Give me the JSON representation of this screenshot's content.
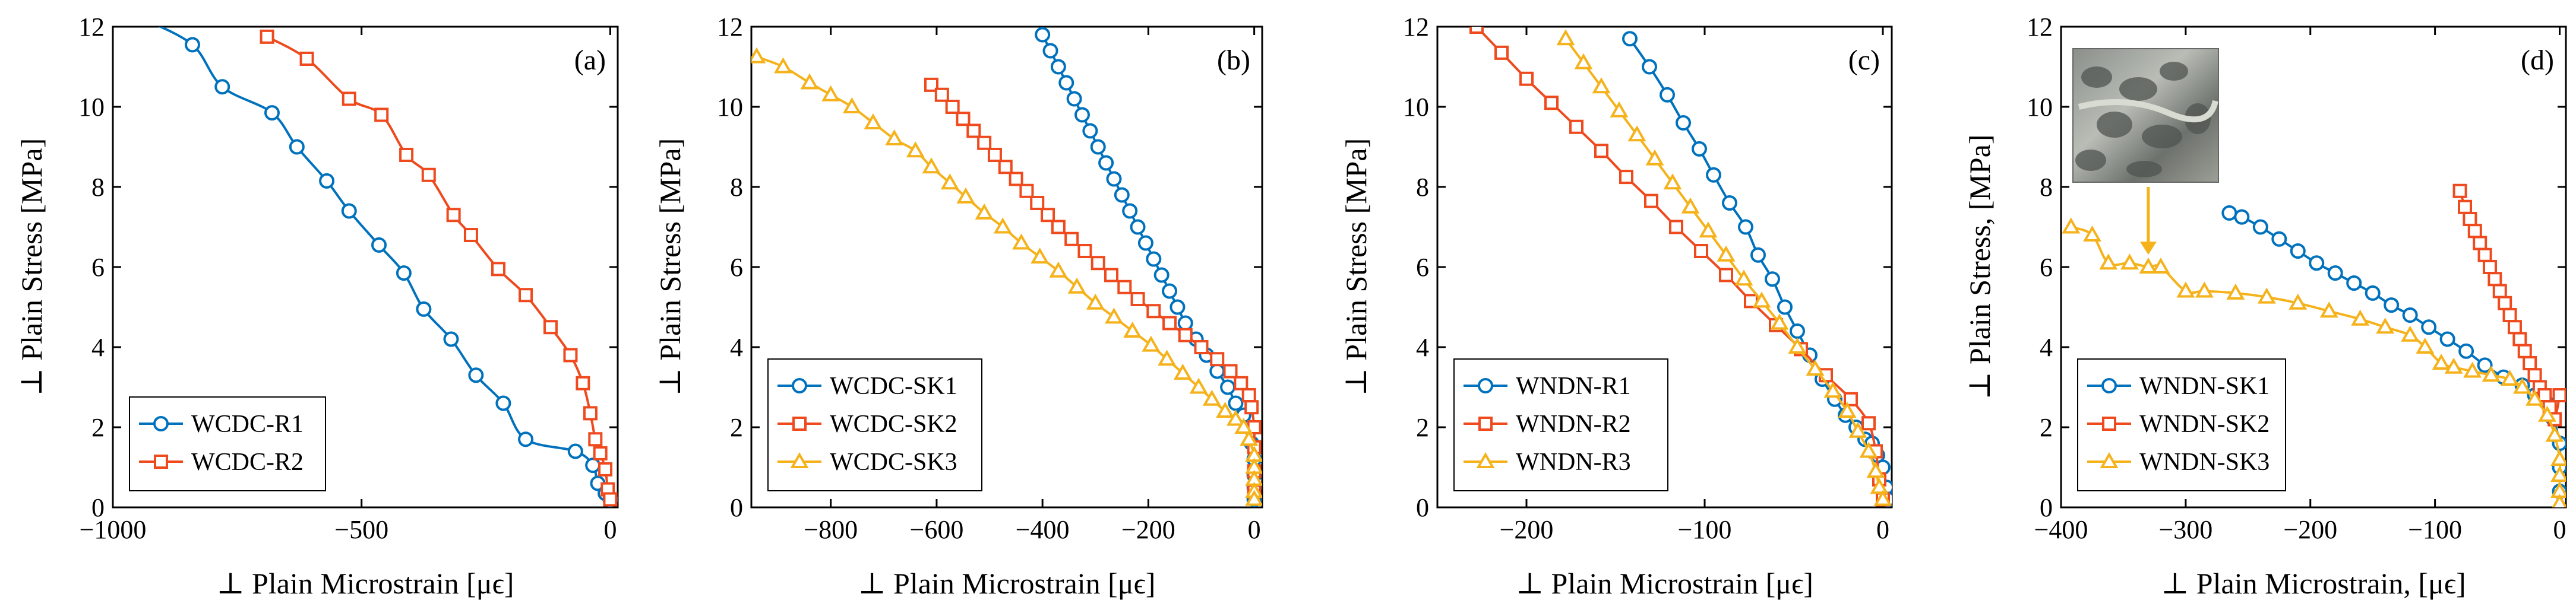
{
  "figure": {
    "name": "Four-panel stress-microstrain figure"
  },
  "colors": {
    "series1": "#0072BD",
    "series2": "#EE4A1E",
    "series3": "#F5B21A",
    "axis": "#000000",
    "arrow": "#F5B21A"
  },
  "chart_data": [
    {
      "type": "line",
      "panel": "(a)",
      "xlabel": "⊥ Plain Microstrain [μϵ]",
      "ylabel": "⊥ Plain Stress [MPa]",
      "xlim": [
        -1000,
        15
      ],
      "ylim": [
        0,
        12
      ],
      "xticks": [
        -1000,
        -500,
        0
      ],
      "xtick_labels": [
        "−1000",
        "−500",
        "0"
      ],
      "yticks": [
        0,
        2,
        4,
        6,
        8,
        10,
        12
      ],
      "legend_position": "bottom-left",
      "series": [
        {
          "name": "WCDC-R1",
          "marker": "circle",
          "color": "#0072BD",
          "x": [
            -940,
            -840,
            -780,
            -680,
            -630,
            -570,
            -525,
            -465,
            -415,
            -375,
            -320,
            -270,
            -215,
            -170,
            -70,
            -35,
            -25,
            -10,
            0
          ],
          "y": [
            12.2,
            11.55,
            10.5,
            9.85,
            9.0,
            8.15,
            7.4,
            6.55,
            5.85,
            4.95,
            4.2,
            3.3,
            2.6,
            1.7,
            1.4,
            1.05,
            0.6,
            0.35,
            0.2
          ]
        },
        {
          "name": "WCDC-R2",
          "marker": "square",
          "color": "#EE4A1E",
          "x": [
            -690,
            -610,
            -525,
            -460,
            -410,
            -365,
            -315,
            -280,
            -225,
            -170,
            -120,
            -80,
            -55,
            -40,
            -30,
            -20,
            -10,
            -5,
            0
          ],
          "y": [
            11.75,
            11.2,
            10.2,
            9.8,
            8.8,
            8.3,
            7.3,
            6.8,
            5.95,
            5.3,
            4.5,
            3.8,
            3.1,
            2.35,
            1.7,
            1.35,
            0.95,
            0.45,
            0.2
          ]
        }
      ]
    },
    {
      "type": "line",
      "panel": "(b)",
      "xlabel": "⊥ Plain Microstrain [μϵ]",
      "ylabel": "⊥ Plain Stress [MPa]",
      "xlim": [
        -950,
        15
      ],
      "ylim": [
        0,
        12
      ],
      "xticks": [
        -800,
        -600,
        -400,
        -200,
        0
      ],
      "xtick_labels": [
        "−800",
        "−600",
        "−400",
        "−200",
        "0"
      ],
      "yticks": [
        0,
        2,
        4,
        6,
        8,
        10,
        12
      ],
      "legend_position": "bottom-left",
      "series": [
        {
          "name": "WCDC-SK1",
          "marker": "circle",
          "color": "#0072BD",
          "x": [
            -400,
            -385,
            -370,
            -355,
            -340,
            -325,
            -310,
            -295,
            -280,
            -265,
            -250,
            -235,
            -220,
            -205,
            -190,
            -175,
            -160,
            -145,
            -130,
            -110,
            -90,
            -70,
            -50,
            -35,
            -20,
            -10,
            -5,
            0,
            0,
            0,
            0
          ],
          "y": [
            11.8,
            11.4,
            11.0,
            10.6,
            10.2,
            9.8,
            9.4,
            9.0,
            8.6,
            8.2,
            7.8,
            7.4,
            7.0,
            6.6,
            6.2,
            5.8,
            5.4,
            5.0,
            4.6,
            4.2,
            3.8,
            3.4,
            3.0,
            2.6,
            2.3,
            2.0,
            1.6,
            1.2,
            0.8,
            0.5,
            0.2
          ]
        },
        {
          "name": "WCDC-SK2",
          "marker": "square",
          "color": "#EE4A1E",
          "x": [
            -610,
            -590,
            -570,
            -550,
            -530,
            -510,
            -490,
            -470,
            -450,
            -430,
            -410,
            -390,
            -370,
            -345,
            -320,
            -295,
            -270,
            -245,
            -220,
            -190,
            -160,
            -130,
            -100,
            -70,
            -45,
            -25,
            -10,
            -5,
            0,
            0,
            0,
            0
          ],
          "y": [
            10.55,
            10.3,
            10.0,
            9.7,
            9.4,
            9.1,
            8.8,
            8.5,
            8.2,
            7.9,
            7.6,
            7.3,
            7.0,
            6.7,
            6.4,
            6.1,
            5.8,
            5.5,
            5.2,
            4.9,
            4.6,
            4.3,
            4.0,
            3.7,
            3.4,
            3.1,
            2.8,
            2.5,
            2.0,
            1.5,
            0.9,
            0.4
          ]
        },
        {
          "name": "WCDC-SK3",
          "marker": "triangle",
          "color": "#F5B21A",
          "x": [
            -940,
            -890,
            -840,
            -800,
            -760,
            -720,
            -680,
            -640,
            -610,
            -575,
            -545,
            -510,
            -475,
            -440,
            -405,
            -370,
            -335,
            -300,
            -265,
            -230,
            -195,
            -165,
            -135,
            -105,
            -80,
            -55,
            -35,
            -20,
            -10,
            0,
            0,
            0,
            0,
            0
          ],
          "y": [
            11.25,
            11.0,
            10.6,
            10.3,
            10.0,
            9.6,
            9.2,
            8.9,
            8.5,
            8.1,
            7.75,
            7.35,
            7.0,
            6.6,
            6.25,
            5.9,
            5.5,
            5.1,
            4.75,
            4.4,
            4.05,
            3.7,
            3.35,
            3.0,
            2.7,
            2.4,
            2.2,
            2.0,
            1.7,
            1.3,
            1.0,
            0.7,
            0.4,
            0.2
          ]
        }
      ]
    },
    {
      "type": "line",
      "panel": "(c)",
      "xlabel": "⊥ Plain Microstrain [μϵ]",
      "ylabel": "⊥ Plain Stress [MPa]",
      "xlim": [
        -250,
        5
      ],
      "ylim": [
        0,
        12
      ],
      "xticks": [
        -200,
        -100,
        0
      ],
      "xtick_labels": [
        "−200",
        "−100",
        "0"
      ],
      "yticks": [
        0,
        2,
        4,
        6,
        8,
        10,
        12
      ],
      "legend_position": "bottom-left",
      "series": [
        {
          "name": "WNDN-R1",
          "marker": "circle",
          "color": "#0072BD",
          "x": [
            -142,
            -131,
            -121,
            -112,
            -103,
            -95,
            -86,
            -77,
            -70,
            -62,
            -55,
            -48,
            -41,
            -34,
            -27,
            -21,
            -15,
            -10,
            -6,
            -3,
            0,
            2,
            3
          ],
          "y": [
            11.7,
            11.0,
            10.3,
            9.6,
            8.95,
            8.3,
            7.6,
            7.0,
            6.3,
            5.7,
            5.0,
            4.4,
            3.8,
            3.2,
            2.7,
            2.3,
            2.0,
            1.7,
            1.6,
            1.3,
            1.0,
            0.5,
            0.2
          ]
        },
        {
          "name": "WNDN-R2",
          "marker": "square",
          "color": "#EE4A1E",
          "x": [
            -228,
            -214,
            -200,
            -186,
            -172,
            -158,
            -144,
            -130,
            -116,
            -102,
            -88,
            -74,
            -60,
            -46,
            -32,
            -18,
            -8,
            -4,
            -2,
            0
          ],
          "y": [
            12.0,
            11.35,
            10.7,
            10.1,
            9.5,
            8.9,
            8.25,
            7.65,
            7.0,
            6.4,
            5.8,
            5.15,
            4.55,
            3.95,
            3.3,
            2.7,
            2.1,
            1.4,
            0.7,
            0.2
          ]
        },
        {
          "name": "WNDN-R3",
          "marker": "triangle",
          "color": "#F5B21A",
          "x": [
            -178,
            -168,
            -158,
            -148,
            -138,
            -128,
            -118,
            -108,
            -98,
            -88,
            -78,
            -68,
            -58,
            -48,
            -38,
            -28,
            -20,
            -14,
            -8,
            -4,
            -2,
            0
          ],
          "y": [
            11.7,
            11.1,
            10.5,
            9.9,
            9.3,
            8.7,
            8.1,
            7.5,
            6.9,
            6.3,
            5.7,
            5.15,
            4.6,
            4.0,
            3.45,
            2.9,
            2.4,
            1.9,
            1.4,
            0.9,
            0.5,
            0.2
          ]
        }
      ]
    },
    {
      "type": "line",
      "panel": "(d)",
      "xlabel": "⊥ Plain Microstrain, [μϵ]",
      "ylabel": "⊥ Plain Stress, [MPa]",
      "xlim": [
        -400,
        5
      ],
      "ylim": [
        0,
        12
      ],
      "xticks": [
        -400,
        -300,
        -200,
        -100,
        0
      ],
      "xtick_labels": [
        "−400",
        "−300",
        "−200",
        "−100",
        "0"
      ],
      "yticks": [
        0,
        2,
        4,
        6,
        8,
        10,
        12
      ],
      "legend_position": "bottom-left",
      "series": [
        {
          "name": "WNDN-SK1",
          "marker": "circle",
          "color": "#0072BD",
          "x": [
            -265,
            -255,
            -240,
            -225,
            -210,
            -195,
            -180,
            -165,
            -150,
            -135,
            -120,
            -105,
            -90,
            -75,
            -60,
            -45,
            -30,
            -20,
            -10,
            -5,
            0,
            0,
            0
          ],
          "y": [
            7.35,
            7.25,
            7.0,
            6.7,
            6.4,
            6.1,
            5.85,
            5.6,
            5.35,
            5.05,
            4.8,
            4.5,
            4.2,
            3.9,
            3.55,
            3.25,
            3.05,
            2.8,
            2.6,
            2.2,
            1.6,
            1.0,
            0.4
          ]
        },
        {
          "name": "WNDN-SK2",
          "marker": "square",
          "color": "#EE4A1E",
          "x": [
            -80,
            -76,
            -72,
            -68,
            -64,
            -60,
            -56,
            -52,
            -48,
            -44,
            -40,
            -36,
            -32,
            -28,
            -24,
            -20,
            -16,
            -12,
            -8,
            -4,
            0
          ],
          "y": [
            7.9,
            7.5,
            7.2,
            6.9,
            6.6,
            6.3,
            6.0,
            5.7,
            5.4,
            5.1,
            4.8,
            4.5,
            4.2,
            3.9,
            3.6,
            3.3,
            3.0,
            2.8,
            2.5,
            2.2,
            2.8
          ]
        },
        {
          "name": "WNDN-SK3",
          "marker": "triangle",
          "color": "#F5B21A",
          "x": [
            -392,
            -375,
            -362,
            -345,
            -330,
            -320,
            -300,
            -285,
            -260,
            -235,
            -210,
            -185,
            -160,
            -140,
            -120,
            -108,
            -95,
            -85,
            -70,
            -55,
            -40,
            -30,
            -20,
            -10,
            -4,
            0,
            0,
            0,
            0
          ],
          "y": [
            7.0,
            6.8,
            6.1,
            6.1,
            6.0,
            6.0,
            5.4,
            5.4,
            5.35,
            5.25,
            5.1,
            4.9,
            4.7,
            4.5,
            4.3,
            4.0,
            3.6,
            3.5,
            3.4,
            3.3,
            3.2,
            3.0,
            2.7,
            2.3,
            1.8,
            1.2,
            0.8,
            0.4,
            0.1
          ]
        }
      ]
    }
  ],
  "inset": {
    "name": "specimen photo",
    "arrow": {
      "from_x": -330,
      "from_y": 9.0,
      "to_x": -330,
      "to_y": 6.1
    }
  }
}
